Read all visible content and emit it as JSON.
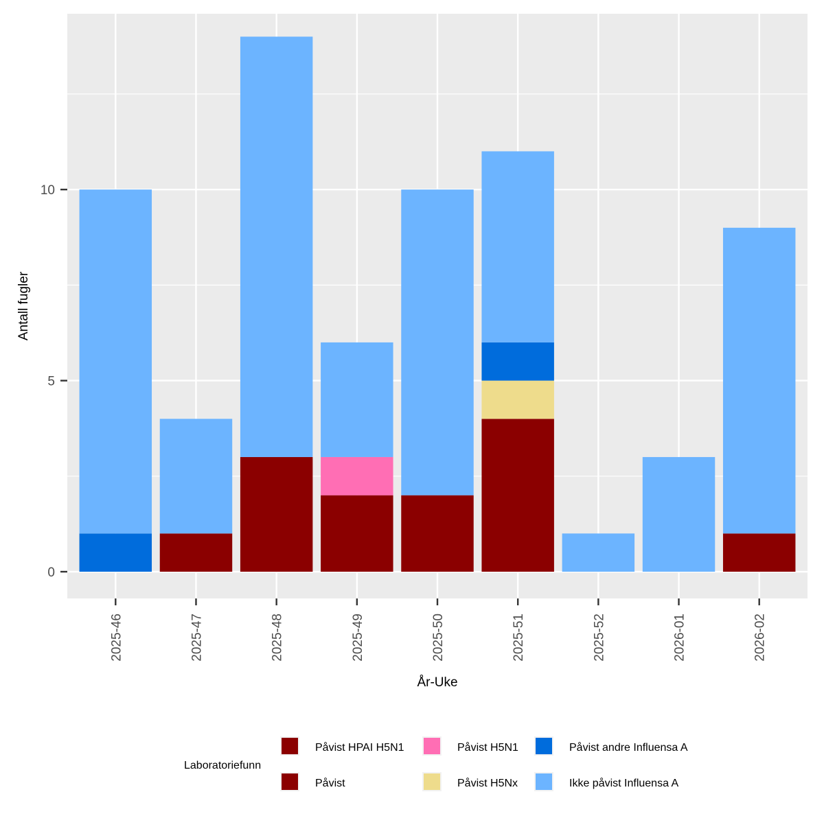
{
  "chart_data": {
    "type": "bar",
    "stacked": true,
    "title": "",
    "xlabel": "År-Uke",
    "ylabel": "Antall fugler",
    "ylim": [
      -0.7,
      14.6
    ],
    "yticks": [
      0,
      5,
      10
    ],
    "ytick_labels": [
      "0",
      "5",
      "10"
    ],
    "categories": [
      "2025-46",
      "2025-47",
      "2025-48",
      "2025-49",
      "2025-50",
      "2025-51",
      "2025-52",
      "2026-01",
      "2026-02"
    ],
    "series": [
      {
        "name": "Påvist HPAI H5N1",
        "color": "#8B0000",
        "values": [
          0,
          0,
          0,
          0,
          0,
          0,
          0,
          0,
          0
        ]
      },
      {
        "name": "Påvist",
        "color": "#8B0000",
        "values": [
          0,
          1,
          3,
          2,
          2,
          4,
          0,
          0,
          1
        ]
      },
      {
        "name": "Påvist H5N1",
        "color": "#FF6EB4",
        "values": [
          0,
          0,
          0,
          1,
          0,
          0,
          0,
          0,
          0
        ]
      },
      {
        "name": "Påvist H5Nx",
        "color": "#EEDC8C",
        "values": [
          0,
          0,
          0,
          0,
          0,
          1,
          0,
          0,
          0
        ]
      },
      {
        "name": "Påvist andre Influensa A",
        "color": "#006CDC",
        "values": [
          1,
          0,
          0,
          0,
          0,
          1,
          0,
          0,
          0
        ]
      },
      {
        "name": "Ikke påvist Influensa A",
        "color": "#6CB4FF",
        "values": [
          9,
          3,
          11,
          3,
          8,
          5,
          1,
          3,
          8
        ]
      }
    ],
    "legend_title": "Laboratoriefunn",
    "legend_position": "bottom",
    "grid": true
  },
  "colors": {
    "panel_background": "#EBEBEB",
    "grid": "#FFFFFF",
    "axis_text": "#4D4D4D",
    "axis_title": "#000000"
  }
}
